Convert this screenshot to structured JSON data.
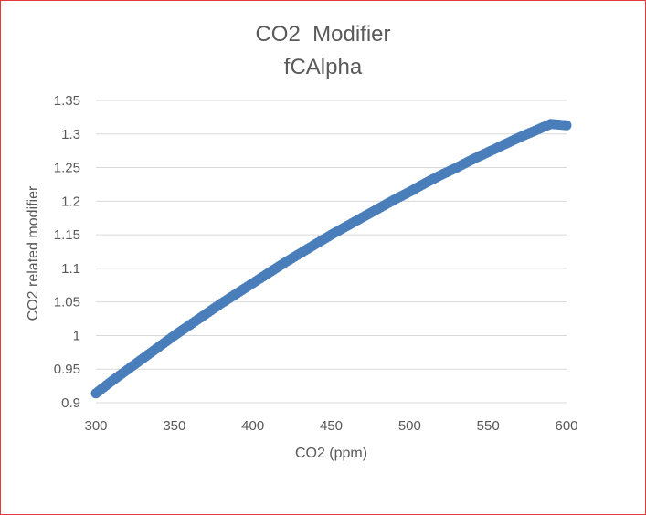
{
  "chart_data": {
    "type": "scatter",
    "title_line1": "CO2  Modifier",
    "title_line2": "fCAlpha",
    "xlabel": "CO2 (ppm)",
    "ylabel": "CO2 related modifier",
    "xlim": [
      300,
      600
    ],
    "ylim": [
      0.9,
      1.35
    ],
    "x_ticks": [
      "300",
      "350",
      "400",
      "450",
      "500",
      "550",
      "600"
    ],
    "y_ticks": [
      "0.9",
      "0.95",
      "1",
      "1.05",
      "1.1",
      "1.15",
      "1.2",
      "1.25",
      "1.3",
      "1.35"
    ],
    "grid": "horizontal",
    "legend": "none",
    "series_color": "#4a7ebb",
    "series": [
      {
        "x": [
          300,
          310,
          320,
          330,
          340,
          350,
          360,
          370,
          380,
          390,
          400,
          410,
          420,
          430,
          440,
          450,
          460,
          470,
          480,
          490,
          500,
          510,
          520,
          530,
          540,
          550,
          560,
          570,
          580,
          590,
          600
        ],
        "y": [
          0.914,
          0.932,
          0.949,
          0.966,
          0.983,
          1.0,
          1.016,
          1.032,
          1.048,
          1.063,
          1.078,
          1.093,
          1.108,
          1.122,
          1.136,
          1.15,
          1.163,
          1.176,
          1.189,
          1.202,
          1.214,
          1.227,
          1.239,
          1.25,
          1.262,
          1.273,
          1.284,
          1.295,
          1.305,
          1.315,
          1.313
        ]
      }
    ]
  }
}
